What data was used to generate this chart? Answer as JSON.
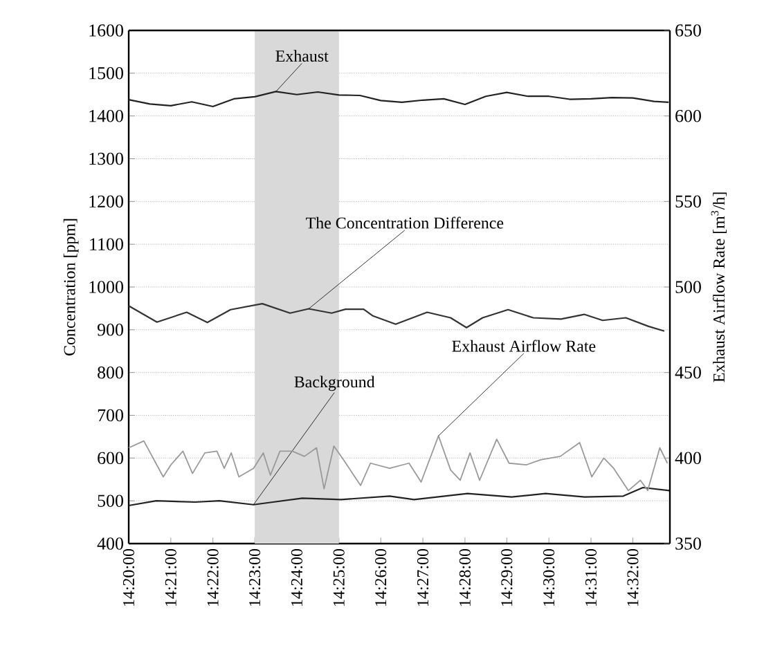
{
  "chart_data": {
    "type": "line",
    "xlabel": null,
    "ylabel": "Concentration [ppm]",
    "y2label": "Exhaust Airflow Rate [m$^{3}$/h]",
    "xlim": [
      14.3333,
      14.548
    ],
    "ylim": [
      400,
      1600
    ],
    "y2lim": [
      350,
      650
    ],
    "xticks": [
      {
        "value": 14.3333,
        "label": "14:20:00"
      },
      {
        "value": 14.35,
        "label": "14:21:00"
      },
      {
        "value": 14.3667,
        "label": "14:22:00"
      },
      {
        "value": 14.3833,
        "label": "14:23:00"
      },
      {
        "value": 14.4,
        "label": "14:24:00"
      },
      {
        "value": 14.4167,
        "label": "14:25:00"
      },
      {
        "value": 14.4333,
        "label": "14:26:00"
      },
      {
        "value": 14.45,
        "label": "14:27:00"
      },
      {
        "value": 14.4667,
        "label": "14:28:00"
      },
      {
        "value": 14.4833,
        "label": "14:29:00"
      },
      {
        "value": 14.5,
        "label": "14:30:00"
      },
      {
        "value": 14.5167,
        "label": "14:31:00"
      },
      {
        "value": 14.5333,
        "label": "14:32:00"
      }
    ],
    "yticks": [
      400,
      500,
      600,
      700,
      800,
      900,
      1000,
      1100,
      1200,
      1300,
      1400,
      1500,
      1600
    ],
    "y2ticks": [
      350,
      400,
      450,
      500,
      550,
      600,
      650
    ],
    "grid": "y",
    "bands": [
      {
        "axis": "x",
        "from": 14.3833,
        "to": 14.4167,
        "color": "#d9d9d9"
      }
    ],
    "series": [
      {
        "name": "Exhaust",
        "color": "#222222",
        "axis": "y",
        "x": [
          14.3333,
          14.3417,
          14.35,
          14.3583,
          14.3667,
          14.375,
          14.3833,
          14.3917,
          14.4,
          14.4083,
          14.4167,
          14.425,
          14.4333,
          14.4417,
          14.45,
          14.4583,
          14.4667,
          14.475,
          14.4833,
          14.4917,
          14.5,
          14.5083,
          14.5167,
          14.525,
          14.5333,
          14.5417,
          14.5475
        ],
        "values": [
          1438,
          1428,
          1424,
          1433,
          1422,
          1440,
          1445,
          1457,
          1450,
          1456,
          1449,
          1448,
          1436,
          1432,
          1437,
          1440,
          1427,
          1446,
          1455,
          1446,
          1446,
          1439,
          1440,
          1443,
          1442,
          1434,
          1432
        ]
      },
      {
        "name": "The Concentration Difference",
        "color": "#333333",
        "axis": "y",
        "x": [
          14.3333,
          14.3445,
          14.3563,
          14.3645,
          14.3737,
          14.3863,
          14.3973,
          14.4047,
          14.4138,
          14.4193,
          14.4265,
          14.43,
          14.4392,
          14.4517,
          14.461,
          14.4673,
          14.4737,
          14.4838,
          14.4938,
          14.5048,
          14.514,
          14.5213,
          14.5305,
          14.5395,
          14.5458
        ],
        "values": [
          956,
          918,
          941,
          917,
          947,
          961,
          939,
          949,
          939,
          948,
          948,
          933,
          913,
          941,
          928,
          905,
          928,
          947,
          928,
          925,
          936,
          922,
          928,
          908,
          897
        ]
      },
      {
        "name": "Exhaust Airflow Rate",
        "color": "#999999",
        "axis": "y2",
        "x": [
          14.3333,
          14.3393,
          14.347,
          14.35,
          14.3548,
          14.3586,
          14.3635,
          14.3683,
          14.3712,
          14.374,
          14.377,
          14.3828,
          14.3867,
          14.3895,
          14.3933,
          14.3982,
          14.403,
          14.4078,
          14.4108,
          14.4147,
          14.4185,
          14.4253,
          14.4292,
          14.4368,
          14.4445,
          14.4493,
          14.4562,
          14.461,
          14.4648,
          14.4687,
          14.4725,
          14.4793,
          14.4842,
          14.491,
          14.4967,
          14.5045,
          14.5122,
          14.517,
          14.5218,
          14.5257,
          14.5315,
          14.5363,
          14.5392,
          14.544,
          14.547
        ],
        "values": [
          406,
          410,
          389,
          396,
          404,
          391,
          403,
          404,
          394,
          403,
          389,
          394,
          403,
          390,
          404,
          404,
          401,
          406,
          382,
          407,
          399,
          384,
          397,
          394,
          397,
          386,
          413,
          393,
          387,
          403,
          387,
          411,
          397,
          396,
          399,
          401,
          409,
          389,
          400,
          394,
          381,
          387,
          381,
          406,
          397
        ]
      },
      {
        "name": "Background",
        "color": "#222222",
        "axis": "y",
        "x": [
          14.3333,
          14.3442,
          14.3597,
          14.3693,
          14.3828,
          14.3905,
          14.4022,
          14.4175,
          14.4368,
          14.4465,
          14.4677,
          14.4852,
          14.4987,
          14.5142,
          14.5295,
          14.5373,
          14.5478
        ],
        "values": [
          489,
          500,
          497,
          500,
          491,
          497,
          506,
          503,
          511,
          503,
          517,
          509,
          517,
          509,
          511,
          531,
          524
        ]
      }
    ]
  }
}
